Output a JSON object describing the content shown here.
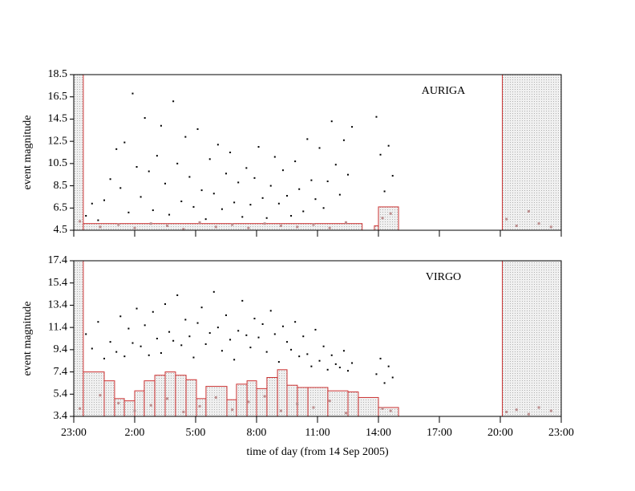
{
  "chart_data": [
    {
      "type": "scatter",
      "title": "AURIGA",
      "ylabel": "event magnitude",
      "xlim": [
        0,
        24
      ],
      "ylim": [
        4.5,
        18.5
      ],
      "yticks": [
        4.5,
        6.5,
        8.5,
        10.5,
        12.5,
        14.5,
        16.5,
        18.5
      ],
      "dead_time": [
        [
          0,
          0.47
        ],
        [
          21.1,
          24
        ]
      ],
      "dead_color": "#cc3333",
      "threshold": {
        "color": "#cc3333",
        "bins": [
          0.47,
          14.2,
          14.8,
          15.0,
          15.99
        ],
        "values": [
          5.1,
          null,
          4.9,
          6.6
        ]
      },
      "series": [
        {
          "color": "#000000",
          "x": [
            0.6,
            0.9,
            1.2,
            1.5,
            1.8,
            2.1,
            2.3,
            2.5,
            2.7,
            2.9,
            3.1,
            3.3,
            3.5,
            3.7,
            3.9,
            4.1,
            4.3,
            4.5,
            4.7,
            4.9,
            5.1,
            5.3,
            5.5,
            5.7,
            5.9,
            6.1,
            6.3,
            6.5,
            6.7,
            6.9,
            7.1,
            7.3,
            7.5,
            7.7,
            7.9,
            8.1,
            8.3,
            8.5,
            8.7,
            8.9,
            9.1,
            9.3,
            9.5,
            9.7,
            9.9,
            10.1,
            10.3,
            10.5,
            10.7,
            10.9,
            11.1,
            11.3,
            11.5,
            11.7,
            11.9,
            12.1,
            12.3,
            12.5,
            12.7,
            12.9,
            13.1,
            13.3,
            13.5,
            13.7,
            14.9,
            15.1,
            15.3,
            15.5,
            15.7
          ],
          "values": [
            5.8,
            6.9,
            5.4,
            7.2,
            9.1,
            11.8,
            8.3,
            12.4,
            6.1,
            16.8,
            10.2,
            7.5,
            14.6,
            9.8,
            6.3,
            11.2,
            13.9,
            8.7,
            5.9,
            16.1,
            10.5,
            7.1,
            12.9,
            9.3,
            6.6,
            13.6,
            8.1,
            5.5,
            10.9,
            7.8,
            12.2,
            6.4,
            9.6,
            11.5,
            7.0,
            8.8,
            5.7,
            10.1,
            6.8,
            9.2,
            12.0,
            7.4,
            5.6,
            8.5,
            11.1,
            6.9,
            9.9,
            7.6,
            5.8,
            10.7,
            8.2,
            6.2,
            12.7,
            9.0,
            7.3,
            11.9,
            6.5,
            8.9,
            14.3,
            10.4,
            7.7,
            12.6,
            9.5,
            13.8,
            14.7,
            11.3,
            8.0,
            12.1,
            9.4
          ]
        },
        {
          "color": "#bc8f8f",
          "x": [
            0.3,
            1.3,
            2.2,
            3.0,
            3.8,
            4.6,
            5.4,
            6.2,
            7.0,
            7.8,
            8.6,
            9.4,
            10.2,
            11.0,
            11.8,
            12.6,
            13.4,
            15.2,
            15.6,
            21.3,
            21.8,
            22.4,
            22.9,
            23.5
          ],
          "values": [
            5.3,
            4.8,
            5.0,
            4.7,
            5.1,
            4.9,
            4.6,
            5.2,
            4.8,
            5.0,
            4.7,
            5.1,
            4.9,
            4.8,
            5.0,
            4.7,
            5.2,
            5.6,
            6.0,
            5.5,
            4.9,
            6.2,
            5.1,
            4.8
          ]
        }
      ]
    },
    {
      "type": "scatter",
      "title": "VIRGO",
      "ylabel": "event magnitude",
      "xlabel": "time of day (from 14 Sep 2005)",
      "xlim": [
        0,
        24
      ],
      "ylim": [
        3.4,
        17.4
      ],
      "xticks": [
        {
          "value": 0,
          "label": "23:00"
        },
        {
          "value": 3,
          "label": "2:00"
        },
        {
          "value": 6,
          "label": "5:00"
        },
        {
          "value": 9,
          "label": "8:00"
        },
        {
          "value": 12,
          "label": "11:00"
        },
        {
          "value": 15,
          "label": "14:00"
        },
        {
          "value": 18,
          "label": "17:00"
        },
        {
          "value": 21,
          "label": "20:00"
        },
        {
          "value": 24,
          "label": "23:00"
        }
      ],
      "yticks": [
        3.4,
        5.4,
        7.4,
        9.4,
        11.4,
        13.4,
        15.4,
        17.4
      ],
      "dead_time": [
        [
          0,
          0.47
        ],
        [
          21.1,
          24
        ]
      ],
      "dead_color": "#cc3333",
      "threshold": {
        "color": "#cc3333",
        "bins": [
          0.47,
          1.5,
          2.01,
          2.49,
          3.0,
          3.47,
          3.99,
          4.5,
          5.01,
          5.53,
          6.04,
          6.51,
          7.54,
          8.01,
          8.53,
          9.0,
          9.51,
          10.03,
          10.5,
          11.01,
          11.53,
          12.51,
          13.5,
          14.01,
          15.0,
          15.99
        ],
        "values": [
          7.4,
          6.6,
          5.0,
          4.8,
          5.7,
          6.6,
          7.1,
          7.4,
          7.1,
          6.7,
          5.0,
          6.1,
          4.9,
          6.3,
          6.6,
          5.9,
          6.9,
          7.6,
          6.2,
          6.0,
          6.0,
          5.7,
          5.6,
          5.1,
          4.2
        ]
      },
      "series": [
        {
          "color": "#000000",
          "x": [
            0.6,
            0.9,
            1.2,
            1.5,
            1.8,
            2.1,
            2.3,
            2.5,
            2.7,
            2.9,
            3.1,
            3.3,
            3.5,
            3.7,
            3.9,
            4.1,
            4.3,
            4.5,
            4.7,
            4.9,
            5.1,
            5.3,
            5.5,
            5.7,
            5.9,
            6.1,
            6.3,
            6.5,
            6.7,
            6.9,
            7.1,
            7.3,
            7.5,
            7.7,
            7.9,
            8.1,
            8.3,
            8.5,
            8.7,
            8.9,
            9.1,
            9.3,
            9.5,
            9.7,
            9.9,
            10.1,
            10.3,
            10.5,
            10.7,
            10.9,
            11.1,
            11.3,
            11.5,
            11.7,
            11.9,
            12.1,
            12.3,
            12.5,
            12.7,
            12.9,
            13.1,
            13.3,
            13.5,
            13.7,
            14.9,
            15.1,
            15.3,
            15.5,
            15.7
          ],
          "values": [
            10.8,
            9.5,
            11.9,
            8.6,
            10.1,
            9.2,
            12.4,
            8.8,
            11.3,
            10.0,
            13.1,
            9.7,
            11.6,
            8.9,
            12.8,
            10.4,
            9.1,
            13.5,
            11.0,
            10.2,
            14.3,
            9.8,
            12.1,
            10.6,
            8.7,
            11.8,
            13.2,
            9.9,
            10.9,
            14.6,
            11.4,
            9.3,
            12.5,
            10.3,
            8.5,
            11.1,
            13.8,
            10.7,
            9.6,
            12.2,
            10.5,
            11.7,
            9.2,
            12.9,
            10.8,
            8.3,
            11.5,
            10.1,
            9.4,
            11.9,
            8.8,
            10.6,
            9.0,
            7.9,
            11.2,
            8.4,
            9.7,
            7.6,
            8.9,
            8.1,
            7.8,
            9.3,
            7.5,
            8.2,
            7.2,
            8.6,
            6.4,
            7.9,
            6.9
          ]
        },
        {
          "color": "#bc8f8f",
          "x": [
            0.3,
            1.3,
            2.2,
            3.0,
            3.8,
            4.6,
            5.4,
            6.2,
            7.0,
            7.8,
            8.6,
            9.4,
            10.2,
            11.0,
            11.8,
            12.6,
            13.4,
            15.2,
            15.6,
            21.3,
            21.8,
            22.4,
            22.9,
            23.5
          ],
          "values": [
            4.1,
            5.3,
            4.6,
            3.9,
            4.4,
            5.0,
            3.8,
            4.3,
            5.1,
            4.0,
            4.7,
            5.2,
            3.9,
            4.5,
            4.2,
            4.8,
            3.7,
            4.1,
            3.9,
            3.8,
            4.0,
            3.6,
            4.2,
            3.9
          ]
        }
      ]
    }
  ]
}
